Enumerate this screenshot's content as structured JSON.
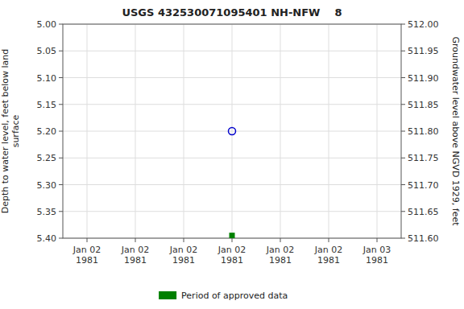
{
  "chart_data": {
    "type": "scatter",
    "title": "USGS 432530071095401 NH-NFW    8",
    "ylabel": "Depth to water level, feet below land\nsurface",
    "y2label": "Groundwater level above NGVD 1929, feet",
    "categories": [
      "Jan 02\n1981",
      "Jan 02\n1981",
      "Jan 02\n1981",
      "Jan 02\n1981",
      "Jan 02\n1981",
      "Jan 02\n1981",
      "Jan 03\n1981"
    ],
    "series": [
      {
        "color": "#0000cc",
        "marker": "open-circle",
        "values": [
          null,
          null,
          null,
          5.2,
          null,
          null,
          null
        ]
      },
      {
        "name": "Period of approved data",
        "color": "#008000",
        "marker": "square",
        "values": [
          null,
          null,
          null,
          5.395,
          null,
          null,
          null
        ]
      }
    ],
    "ylim": [
      5.4,
      5.0
    ],
    "yticks": [
      {
        "value": 5.0,
        "label": "5.00"
      },
      {
        "value": 5.05,
        "label": "5.05"
      },
      {
        "value": 5.1,
        "label": "5.10"
      },
      {
        "value": 5.15,
        "label": "5.15"
      },
      {
        "value": 5.2,
        "label": "5.20"
      },
      {
        "value": 5.25,
        "label": "5.25"
      },
      {
        "value": 5.3,
        "label": "5.30"
      },
      {
        "value": 5.35,
        "label": "5.35"
      },
      {
        "value": 5.4,
        "label": "5.40"
      }
    ],
    "y2lim": [
      511.6,
      512.0
    ],
    "y2ticks": [
      {
        "value": 512.0,
        "label": "512.00"
      },
      {
        "value": 511.95,
        "label": "511.95"
      },
      {
        "value": 511.9,
        "label": "511.90"
      },
      {
        "value": 511.85,
        "label": "511.85"
      },
      {
        "value": 511.8,
        "label": "511.80"
      },
      {
        "value": 511.75,
        "label": "511.75"
      },
      {
        "value": 511.7,
        "label": "511.70"
      },
      {
        "value": 511.65,
        "label": "511.65"
      },
      {
        "value": 511.6,
        "label": "511.60"
      }
    ],
    "grid": true,
    "legend": "bottom"
  }
}
